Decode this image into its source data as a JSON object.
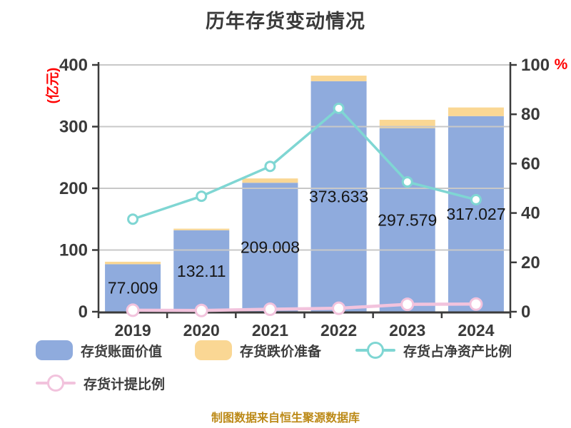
{
  "chart_data": {
    "type": "bar",
    "title": "历年存货变动情况",
    "categories": [
      "2019",
      "2020",
      "2021",
      "2022",
      "2023",
      "2024"
    ],
    "series": [
      {
        "name": "存货账面价值",
        "type": "bar",
        "axis": "left",
        "color": "#8fabdd",
        "values": [
          77.009,
          132.11,
          209.008,
          373.633,
          297.579,
          317.027
        ],
        "labels": [
          "77.009",
          "132.11",
          "209.008",
          "373.633",
          "297.579",
          "317.027"
        ]
      },
      {
        "name": "存货跌价准备",
        "type": "bar",
        "axis": "left",
        "stacked": true,
        "color": "#fad794",
        "values": [
          4,
          2.5,
          7,
          9,
          13.5,
          14
        ]
      },
      {
        "name": "存货占净资产比例",
        "type": "line",
        "axis": "right",
        "color": "#7fd6d3",
        "values": [
          37.5,
          46.8,
          58.9,
          82.4,
          52.6,
          45.4
        ]
      },
      {
        "name": "存货计提比例",
        "type": "line",
        "axis": "right",
        "color": "#f2c3dd",
        "values": [
          0.6,
          0.5,
          1.0,
          1.4,
          3.0,
          3.1
        ]
      }
    ],
    "left_axis": {
      "label": "(亿元)",
      "min": 0,
      "max": 400,
      "ticks": [
        0,
        100,
        200,
        300,
        400
      ]
    },
    "right_axis": {
      "label": "%",
      "min": 0,
      "max": 100,
      "ticks": [
        0,
        20,
        40,
        60,
        80,
        100
      ]
    },
    "grid": true,
    "legend_position": "bottom"
  },
  "colors": {
    "axis": "#3b3b3b",
    "grid": "#c8c8c8",
    "tick_text": "#3a3a3a",
    "value_text": "#161616",
    "unit_text": "#ff0000",
    "title_text": "#3a3a3a",
    "footer_text": "#bc8a18"
  },
  "footer_note": "制图数据来自恒生聚源数据库"
}
